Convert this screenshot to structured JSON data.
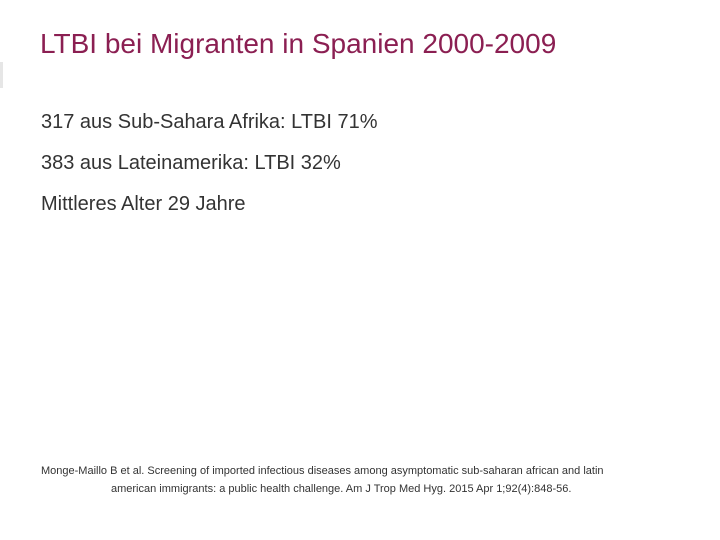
{
  "slide": {
    "title": "LTBI bei Migranten in Spanien 2000-2009",
    "title_color": "#8b1f52",
    "bullets": [
      "317 aus Sub-Sahara Afrika: LTBI 71%",
      "383 aus Lateinamerika: LTBI 32%",
      "Mittleres Alter 29 Jahre"
    ],
    "reference": {
      "line1": "Monge-Maillo B  et al. Screening of imported infectious diseases among asymptomatic sub-saharan african and latin",
      "line2": "american immigrants: a public health challenge. Am J Trop Med Hyg. 2015 Apr 1;92(4):848-56."
    }
  }
}
